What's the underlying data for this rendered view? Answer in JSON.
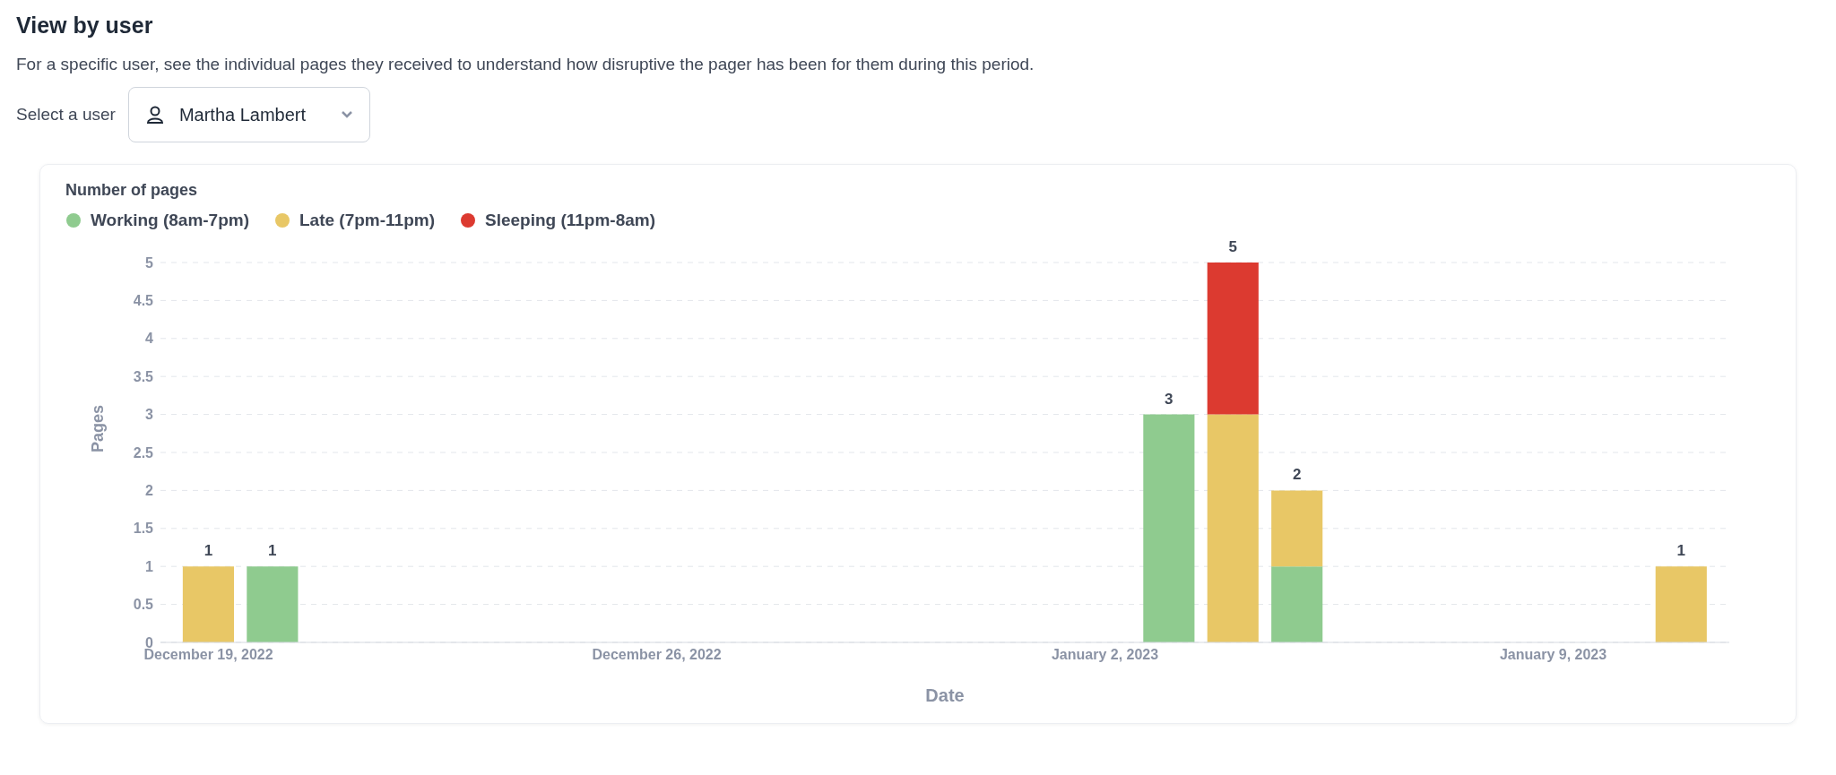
{
  "chart_data": {
    "type": "bar",
    "title": "View by user",
    "subtitle": "For a specific user, see the individual pages they received to understand how disruptive the pager has been for them during this period.",
    "annotations": [
      "Select a user",
      "Martha Lambert",
      "Number of pages"
    ],
    "xlabel": "Date",
    "ylabel": "Pages",
    "x": [
      "2022-12-19",
      "2022-12-20",
      "2023-01-03",
      "2023-01-04",
      "2023-01-05",
      "2023-01-11"
    ],
    "series": [
      {
        "name": "Working (8am-7pm)",
        "color": "#8fcb8f",
        "values": [
          null,
          1,
          3,
          null,
          1,
          null
        ]
      },
      {
        "name": "Late (7pm-11pm)",
        "color": "#e8c766",
        "values": [
          1,
          null,
          null,
          3,
          1,
          1
        ]
      },
      {
        "name": "Sleeping (11pm-8am)",
        "color": "#dc3a30",
        "values": [
          null,
          null,
          null,
          2,
          null,
          null
        ]
      }
    ],
    "stacked": true,
    "totals": [
      "1",
      "1",
      "3",
      "5",
      "2",
      "1"
    ],
    "xlim": [
      "2022-12-18T06:00",
      "2023-01-11T18:00"
    ],
    "xticks": [
      {
        "value": "2022-12-19",
        "label": "December 19, 2022"
      },
      {
        "value": "2022-12-26",
        "label": "December 26, 2022"
      },
      {
        "value": "2023-01-02",
        "label": "January 2, 2023"
      },
      {
        "value": "2023-01-09",
        "label": "January 9, 2023"
      }
    ],
    "ylim": [
      0,
      5
    ],
    "yticks": [
      0,
      0.5,
      1,
      1.5,
      2,
      2.5,
      3,
      3.5,
      4,
      4.5,
      5
    ],
    "grid": "y",
    "legend": "top left"
  }
}
